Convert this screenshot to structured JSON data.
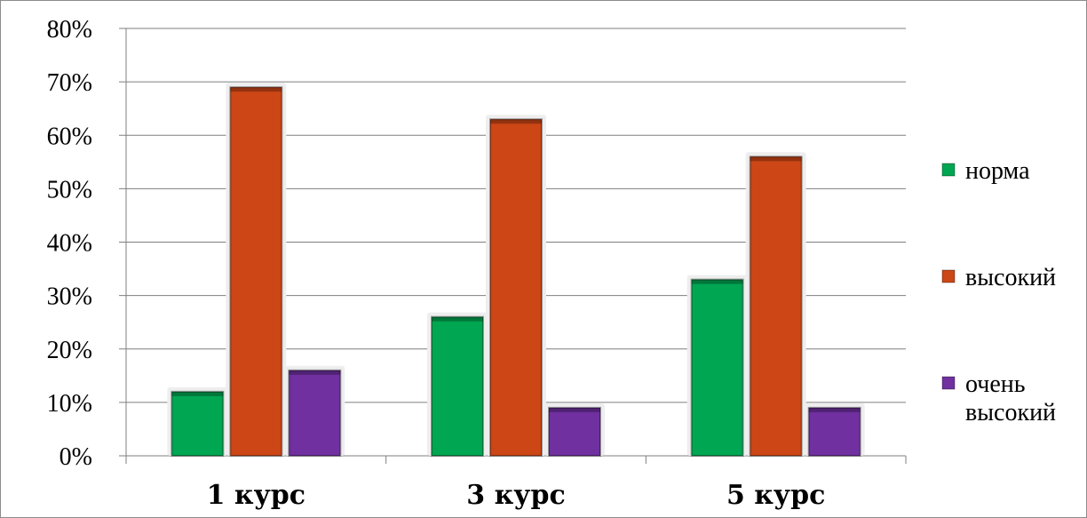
{
  "chart_data": {
    "type": "bar",
    "categories": [
      "1 курс",
      "3 курс",
      "5 курс"
    ],
    "series": [
      {
        "name": "норма",
        "values": [
          12,
          26,
          33
        ],
        "color": "#00a651"
      },
      {
        "name": "высокий",
        "values": [
          69,
          63,
          56
        ],
        "color": "#cc4616"
      },
      {
        "name": "очень высокий",
        "values": [
          16,
          9,
          9
        ],
        "color": "#7030a0"
      }
    ],
    "yticks": [
      "0%",
      "10%",
      "20%",
      "30%",
      "40%",
      "50%",
      "60%",
      "70%",
      "80%"
    ],
    "ylim": [
      0,
      80
    ],
    "grid": true,
    "legend_position": "right",
    "title": "",
    "xlabel": "",
    "ylabel": ""
  }
}
